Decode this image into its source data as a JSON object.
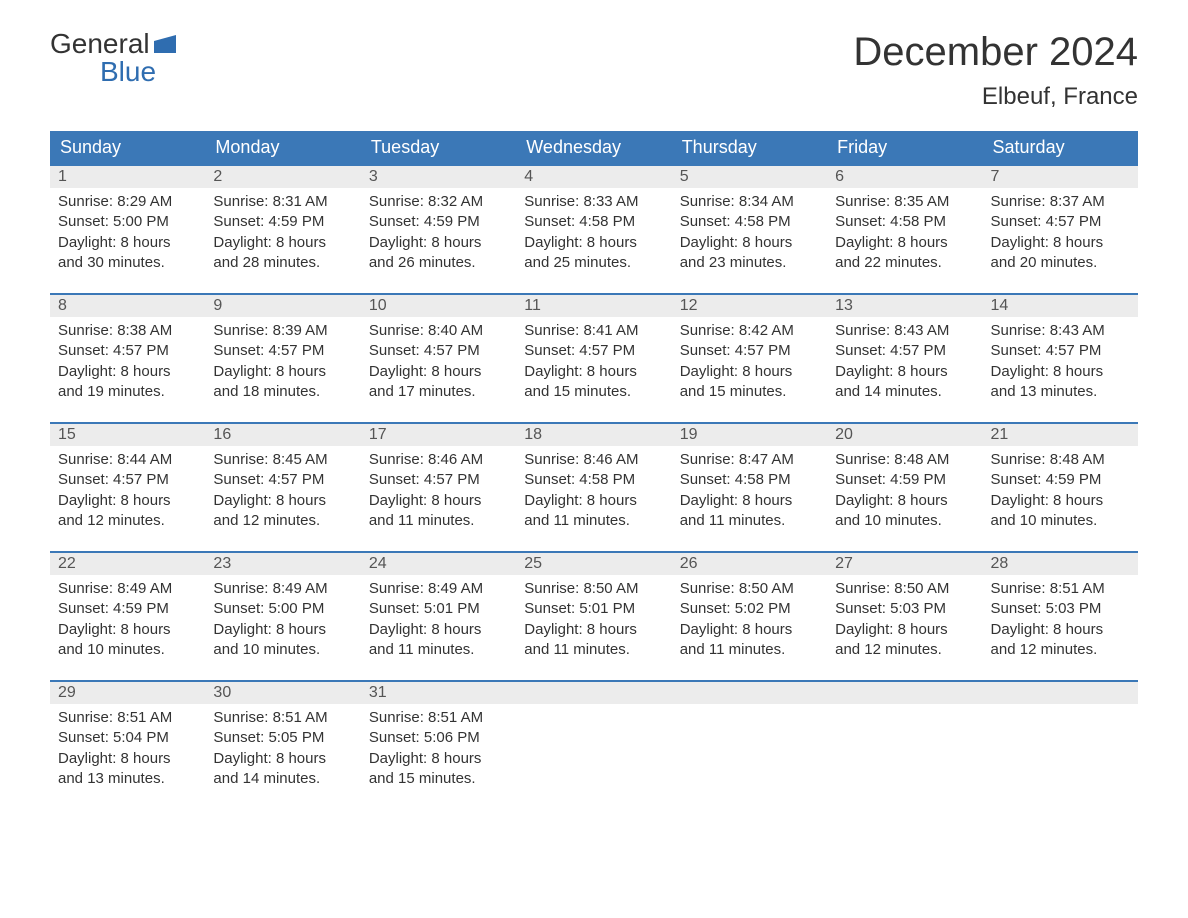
{
  "brand": {
    "line1": "General",
    "line2": "Blue",
    "flag_color": "#2f6db0"
  },
  "title": "December 2024",
  "location": "Elbeuf, France",
  "colors": {
    "header_bg": "#3b78b7",
    "header_text": "#ffffff",
    "daynum_bg": "#ececec",
    "text": "#333333",
    "row_border": "#3b78b7",
    "page_bg": "#ffffff"
  },
  "typography": {
    "font_family": "Arial, Helvetica, sans-serif",
    "title_fontsize": 40,
    "location_fontsize": 24,
    "header_fontsize": 18,
    "daynum_fontsize": 16,
    "body_fontsize": 15
  },
  "day_headers": [
    "Sunday",
    "Monday",
    "Tuesday",
    "Wednesday",
    "Thursday",
    "Friday",
    "Saturday"
  ],
  "weeks": [
    [
      {
        "n": "1",
        "sunrise": "Sunrise: 8:29 AM",
        "sunset": "Sunset: 5:00 PM",
        "d1": "Daylight: 8 hours",
        "d2": "and 30 minutes."
      },
      {
        "n": "2",
        "sunrise": "Sunrise: 8:31 AM",
        "sunset": "Sunset: 4:59 PM",
        "d1": "Daylight: 8 hours",
        "d2": "and 28 minutes."
      },
      {
        "n": "3",
        "sunrise": "Sunrise: 8:32 AM",
        "sunset": "Sunset: 4:59 PM",
        "d1": "Daylight: 8 hours",
        "d2": "and 26 minutes."
      },
      {
        "n": "4",
        "sunrise": "Sunrise: 8:33 AM",
        "sunset": "Sunset: 4:58 PM",
        "d1": "Daylight: 8 hours",
        "d2": "and 25 minutes."
      },
      {
        "n": "5",
        "sunrise": "Sunrise: 8:34 AM",
        "sunset": "Sunset: 4:58 PM",
        "d1": "Daylight: 8 hours",
        "d2": "and 23 minutes."
      },
      {
        "n": "6",
        "sunrise": "Sunrise: 8:35 AM",
        "sunset": "Sunset: 4:58 PM",
        "d1": "Daylight: 8 hours",
        "d2": "and 22 minutes."
      },
      {
        "n": "7",
        "sunrise": "Sunrise: 8:37 AM",
        "sunset": "Sunset: 4:57 PM",
        "d1": "Daylight: 8 hours",
        "d2": "and 20 minutes."
      }
    ],
    [
      {
        "n": "8",
        "sunrise": "Sunrise: 8:38 AM",
        "sunset": "Sunset: 4:57 PM",
        "d1": "Daylight: 8 hours",
        "d2": "and 19 minutes."
      },
      {
        "n": "9",
        "sunrise": "Sunrise: 8:39 AM",
        "sunset": "Sunset: 4:57 PM",
        "d1": "Daylight: 8 hours",
        "d2": "and 18 minutes."
      },
      {
        "n": "10",
        "sunrise": "Sunrise: 8:40 AM",
        "sunset": "Sunset: 4:57 PM",
        "d1": "Daylight: 8 hours",
        "d2": "and 17 minutes."
      },
      {
        "n": "11",
        "sunrise": "Sunrise: 8:41 AM",
        "sunset": "Sunset: 4:57 PM",
        "d1": "Daylight: 8 hours",
        "d2": "and 15 minutes."
      },
      {
        "n": "12",
        "sunrise": "Sunrise: 8:42 AM",
        "sunset": "Sunset: 4:57 PM",
        "d1": "Daylight: 8 hours",
        "d2": "and 15 minutes."
      },
      {
        "n": "13",
        "sunrise": "Sunrise: 8:43 AM",
        "sunset": "Sunset: 4:57 PM",
        "d1": "Daylight: 8 hours",
        "d2": "and 14 minutes."
      },
      {
        "n": "14",
        "sunrise": "Sunrise: 8:43 AM",
        "sunset": "Sunset: 4:57 PM",
        "d1": "Daylight: 8 hours",
        "d2": "and 13 minutes."
      }
    ],
    [
      {
        "n": "15",
        "sunrise": "Sunrise: 8:44 AM",
        "sunset": "Sunset: 4:57 PM",
        "d1": "Daylight: 8 hours",
        "d2": "and 12 minutes."
      },
      {
        "n": "16",
        "sunrise": "Sunrise: 8:45 AM",
        "sunset": "Sunset: 4:57 PM",
        "d1": "Daylight: 8 hours",
        "d2": "and 12 minutes."
      },
      {
        "n": "17",
        "sunrise": "Sunrise: 8:46 AM",
        "sunset": "Sunset: 4:57 PM",
        "d1": "Daylight: 8 hours",
        "d2": "and 11 minutes."
      },
      {
        "n": "18",
        "sunrise": "Sunrise: 8:46 AM",
        "sunset": "Sunset: 4:58 PM",
        "d1": "Daylight: 8 hours",
        "d2": "and 11 minutes."
      },
      {
        "n": "19",
        "sunrise": "Sunrise: 8:47 AM",
        "sunset": "Sunset: 4:58 PM",
        "d1": "Daylight: 8 hours",
        "d2": "and 11 minutes."
      },
      {
        "n": "20",
        "sunrise": "Sunrise: 8:48 AM",
        "sunset": "Sunset: 4:59 PM",
        "d1": "Daylight: 8 hours",
        "d2": "and 10 minutes."
      },
      {
        "n": "21",
        "sunrise": "Sunrise: 8:48 AM",
        "sunset": "Sunset: 4:59 PM",
        "d1": "Daylight: 8 hours",
        "d2": "and 10 minutes."
      }
    ],
    [
      {
        "n": "22",
        "sunrise": "Sunrise: 8:49 AM",
        "sunset": "Sunset: 4:59 PM",
        "d1": "Daylight: 8 hours",
        "d2": "and 10 minutes."
      },
      {
        "n": "23",
        "sunrise": "Sunrise: 8:49 AM",
        "sunset": "Sunset: 5:00 PM",
        "d1": "Daylight: 8 hours",
        "d2": "and 10 minutes."
      },
      {
        "n": "24",
        "sunrise": "Sunrise: 8:49 AM",
        "sunset": "Sunset: 5:01 PM",
        "d1": "Daylight: 8 hours",
        "d2": "and 11 minutes."
      },
      {
        "n": "25",
        "sunrise": "Sunrise: 8:50 AM",
        "sunset": "Sunset: 5:01 PM",
        "d1": "Daylight: 8 hours",
        "d2": "and 11 minutes."
      },
      {
        "n": "26",
        "sunrise": "Sunrise: 8:50 AM",
        "sunset": "Sunset: 5:02 PM",
        "d1": "Daylight: 8 hours",
        "d2": "and 11 minutes."
      },
      {
        "n": "27",
        "sunrise": "Sunrise: 8:50 AM",
        "sunset": "Sunset: 5:03 PM",
        "d1": "Daylight: 8 hours",
        "d2": "and 12 minutes."
      },
      {
        "n": "28",
        "sunrise": "Sunrise: 8:51 AM",
        "sunset": "Sunset: 5:03 PM",
        "d1": "Daylight: 8 hours",
        "d2": "and 12 minutes."
      }
    ],
    [
      {
        "n": "29",
        "sunrise": "Sunrise: 8:51 AM",
        "sunset": "Sunset: 5:04 PM",
        "d1": "Daylight: 8 hours",
        "d2": "and 13 minutes."
      },
      {
        "n": "30",
        "sunrise": "Sunrise: 8:51 AM",
        "sunset": "Sunset: 5:05 PM",
        "d1": "Daylight: 8 hours",
        "d2": "and 14 minutes."
      },
      {
        "n": "31",
        "sunrise": "Sunrise: 8:51 AM",
        "sunset": "Sunset: 5:06 PM",
        "d1": "Daylight: 8 hours",
        "d2": "and 15 minutes."
      },
      null,
      null,
      null,
      null
    ]
  ]
}
